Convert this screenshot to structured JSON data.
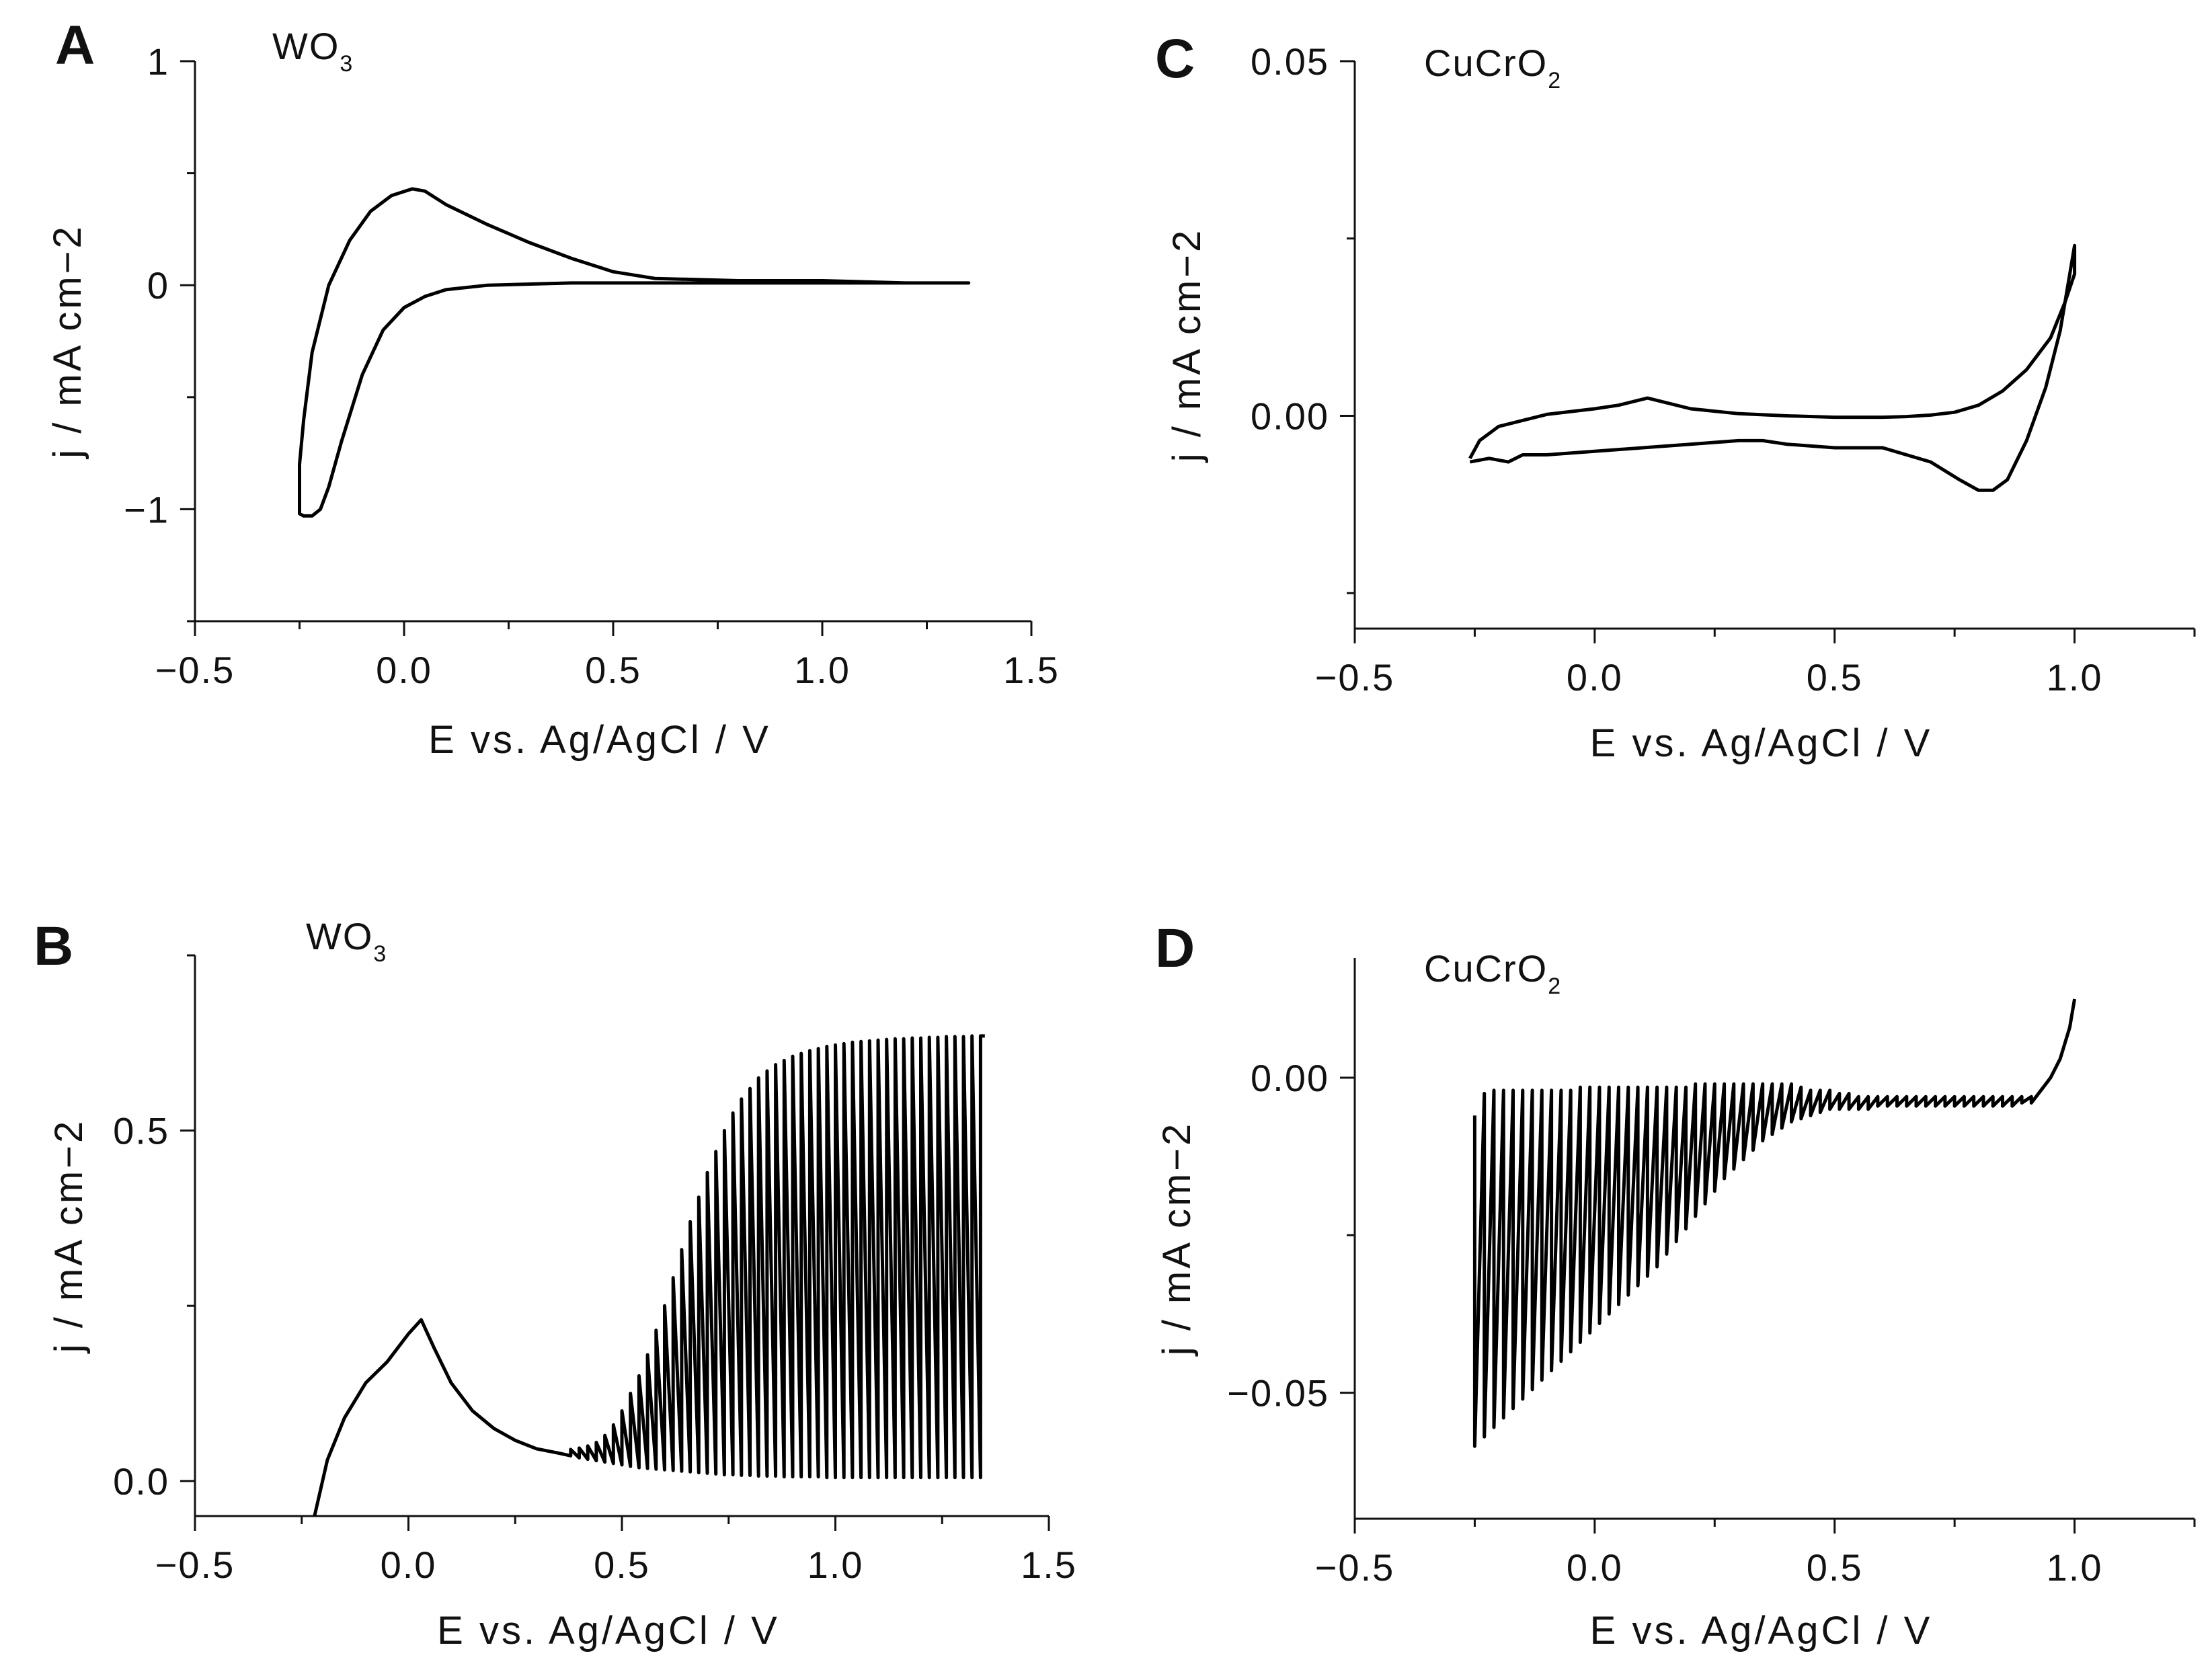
{
  "figure": {
    "panels": [
      {
        "id": "A",
        "letter": "A",
        "material": {
          "base": "WO",
          "sub": "3"
        }
      },
      {
        "id": "B",
        "letter": "B",
        "material": {
          "base": "WO",
          "sub": "3"
        }
      },
      {
        "id": "C",
        "letter": "C",
        "material": {
          "base": "CuCrO",
          "sub": "2"
        }
      },
      {
        "id": "D",
        "letter": "D",
        "material": {
          "base": "CuCrO",
          "sub": "2"
        }
      }
    ]
  },
  "chart_data": [
    {
      "panel": "A",
      "type": "line",
      "title": "WO3",
      "xlabel": "E vs. Ag/AgCl / V",
      "ylabel": "j / mA cm−2",
      "xlim": [
        -0.5,
        1.5
      ],
      "ylim": [
        -1.5,
        1.0
      ],
      "xticks": [
        -0.5,
        0.0,
        0.5,
        1.0,
        1.5
      ],
      "xtick_labels": [
        "−0.5",
        "0.0",
        "0.5",
        "1.0",
        "1.5"
      ],
      "yticks": [
        1,
        0,
        -1
      ],
      "ytick_labels": [
        "1",
        "0",
        "−1"
      ],
      "series": [
        {
          "name": "cyclic voltammogram",
          "x": [
            -0.25,
            -0.25,
            -0.24,
            -0.22,
            -0.2,
            -0.18,
            -0.15,
            -0.1,
            -0.05,
            0.0,
            0.05,
            0.1,
            0.2,
            0.4,
            0.6,
            0.8,
            1.0,
            1.2,
            1.35,
            1.35,
            1.2,
            1.0,
            0.8,
            0.6,
            0.5,
            0.4,
            0.3,
            0.2,
            0.1,
            0.05,
            0.02,
            -0.03,
            -0.08,
            -0.13,
            -0.18,
            -0.22,
            -0.24,
            -0.25
          ],
          "y": [
            -0.8,
            -1.02,
            -1.03,
            -1.03,
            -1.0,
            -0.9,
            -0.7,
            -0.4,
            -0.2,
            -0.1,
            -0.05,
            -0.02,
            0.0,
            0.01,
            0.01,
            0.01,
            0.01,
            0.01,
            0.01,
            0.01,
            0.01,
            0.02,
            0.02,
            0.03,
            0.06,
            0.12,
            0.19,
            0.27,
            0.36,
            0.42,
            0.43,
            0.4,
            0.33,
            0.2,
            0.0,
            -0.3,
            -0.6,
            -0.8
          ]
        }
      ]
    },
    {
      "panel": "B",
      "type": "line",
      "title": "WO3",
      "xlabel": "E vs. Ag/AgCl / V",
      "ylabel": "j / mA cm−2",
      "xlim": [
        -0.5,
        1.5
      ],
      "ylim": [
        -0.05,
        0.75
      ],
      "xticks": [
        -0.5,
        0.0,
        0.5,
        1.0,
        1.5
      ],
      "xtick_labels": [
        "−0.5",
        "0.0",
        "0.5",
        "1.0",
        "1.5"
      ],
      "yticks": [
        0.5,
        0.0
      ],
      "ytick_labels": [
        "0.5",
        "0.0"
      ],
      "series": [
        {
          "name": "chopped-light photocurrent",
          "x": [
            -0.22,
            -0.19,
            -0.15,
            -0.1,
            -0.05,
            0.0,
            0.03,
            0.06,
            0.1,
            0.15,
            0.2,
            0.25,
            0.3,
            0.35,
            0.38,
            0.38,
            0.4,
            0.4,
            0.42,
            0.42,
            0.44,
            0.44,
            0.46,
            0.46,
            0.48,
            0.48,
            0.5,
            0.5,
            0.52,
            0.52,
            0.54,
            0.54,
            0.56,
            0.56,
            0.58,
            0.58,
            0.6,
            0.6,
            0.62,
            0.62,
            0.64,
            0.64,
            0.66,
            0.66,
            0.68,
            0.68,
            0.7,
            0.7,
            0.72,
            0.72,
            0.74,
            0.74,
            0.76,
            0.76,
            0.78,
            0.78,
            0.8,
            0.8,
            0.82,
            0.82,
            0.84,
            0.84,
            0.86,
            0.86,
            0.88,
            0.88,
            0.9,
            0.9,
            0.92,
            0.92,
            0.94,
            0.94,
            0.96,
            0.96,
            0.98,
            0.98,
            1.0,
            1.0,
            1.02,
            1.02,
            1.04,
            1.04,
            1.06,
            1.06,
            1.08,
            1.08,
            1.1,
            1.1,
            1.12,
            1.12,
            1.14,
            1.14,
            1.16,
            1.16,
            1.18,
            1.18,
            1.2,
            1.2,
            1.22,
            1.22,
            1.24,
            1.24,
            1.26,
            1.26,
            1.28,
            1.28,
            1.3,
            1.3,
            1.32,
            1.32,
            1.34,
            1.34,
            1.35
          ],
          "y": [
            -0.05,
            0.03,
            0.09,
            0.14,
            0.17,
            0.21,
            0.23,
            0.19,
            0.14,
            0.1,
            0.075,
            0.058,
            0.046,
            0.04,
            0.036,
            0.045,
            0.033,
            0.047,
            0.031,
            0.05,
            0.029,
            0.055,
            0.027,
            0.065,
            0.025,
            0.08,
            0.023,
            0.1,
            0.021,
            0.125,
            0.019,
            0.15,
            0.018,
            0.18,
            0.017,
            0.215,
            0.016,
            0.25,
            0.015,
            0.29,
            0.014,
            0.33,
            0.013,
            0.37,
            0.012,
            0.405,
            0.011,
            0.44,
            0.01,
            0.47,
            0.009,
            0.5,
            0.009,
            0.525,
            0.008,
            0.545,
            0.008,
            0.56,
            0.007,
            0.575,
            0.007,
            0.585,
            0.007,
            0.594,
            0.006,
            0.6,
            0.006,
            0.606,
            0.006,
            0.61,
            0.006,
            0.614,
            0.006,
            0.617,
            0.005,
            0.62,
            0.005,
            0.622,
            0.005,
            0.624,
            0.005,
            0.626,
            0.005,
            0.627,
            0.005,
            0.628,
            0.005,
            0.629,
            0.005,
            0.63,
            0.005,
            0.631,
            0.005,
            0.631,
            0.005,
            0.632,
            0.005,
            0.632,
            0.005,
            0.633,
            0.005,
            0.633,
            0.005,
            0.634,
            0.005,
            0.634,
            0.005,
            0.634,
            0.005,
            0.635,
            0.005,
            0.635,
            0.635
          ]
        }
      ]
    },
    {
      "panel": "C",
      "type": "line",
      "title": "CuCrO2",
      "xlabel": "E vs. Ag/AgCl / V",
      "ylabel": "j / mA cm−2",
      "xlim": [
        -0.5,
        1.25
      ],
      "ylim": [
        -0.03,
        0.05
      ],
      "xticks": [
        -0.5,
        0.0,
        0.5,
        1.0
      ],
      "xtick_labels": [
        "−0.5",
        "0.0",
        "0.5",
        "1.0"
      ],
      "yticks": [
        0.05,
        0.0
      ],
      "ytick_labels": [
        "0.05",
        "0.00"
      ],
      "series": [
        {
          "name": "cyclic voltammogram",
          "x": [
            -0.26,
            -0.22,
            -0.18,
            -0.15,
            -0.1,
            0.0,
            0.1,
            0.2,
            0.3,
            0.35,
            0.4,
            0.5,
            0.6,
            0.7,
            0.76,
            0.8,
            0.83,
            0.86,
            0.9,
            0.94,
            0.97,
            1.0,
            1.0,
            0.98,
            0.95,
            0.9,
            0.85,
            0.8,
            0.75,
            0.7,
            0.65,
            0.6,
            0.5,
            0.4,
            0.3,
            0.2,
            0.11,
            0.05,
            0.0,
            -0.1,
            -0.2,
            -0.24,
            -0.26
          ],
          "y": [
            -0.0065,
            -0.006,
            -0.0065,
            -0.0055,
            -0.0055,
            -0.005,
            -0.0045,
            -0.004,
            -0.0035,
            -0.0035,
            -0.004,
            -0.0045,
            -0.0045,
            -0.0065,
            -0.009,
            -0.0105,
            -0.0105,
            -0.009,
            -0.0035,
            0.004,
            0.012,
            0.024,
            0.02,
            0.016,
            0.011,
            0.0065,
            0.0035,
            0.0015,
            0.0005,
            0.0001,
            -0.0001,
            -0.0002,
            -0.0002,
            0.0,
            0.0003,
            0.001,
            0.0025,
            0.0015,
            0.001,
            0.0002,
            -0.0015,
            -0.0035,
            -0.006
          ]
        }
      ]
    },
    {
      "panel": "D",
      "type": "line",
      "title": "CuCrO2",
      "xlabel": "E vs. Ag/AgCl / V",
      "ylabel": "j / mA cm−2",
      "xlim": [
        -0.5,
        1.25
      ],
      "ylim": [
        -0.07,
        0.019
      ],
      "xticks": [
        -0.5,
        0.0,
        0.5,
        1.0
      ],
      "xtick_labels": [
        "−0.5",
        "0.0",
        "0.5",
        "1.0"
      ],
      "yticks": [
        0.0,
        -0.05
      ],
      "ytick_labels": [
        "0.00",
        "−0.05"
      ],
      "series": [
        {
          "name": "chopped-light photocurrent",
          "x": [
            -0.25,
            -0.25,
            -0.23,
            -0.23,
            -0.21,
            -0.21,
            -0.19,
            -0.19,
            -0.17,
            -0.17,
            -0.15,
            -0.15,
            -0.13,
            -0.13,
            -0.11,
            -0.11,
            -0.09,
            -0.09,
            -0.07,
            -0.07,
            -0.05,
            -0.05,
            -0.03,
            -0.03,
            -0.01,
            -0.01,
            0.01,
            0.01,
            0.03,
            0.03,
            0.05,
            0.05,
            0.07,
            0.07,
            0.09,
            0.09,
            0.11,
            0.11,
            0.13,
            0.13,
            0.15,
            0.15,
            0.17,
            0.17,
            0.19,
            0.19,
            0.21,
            0.21,
            0.23,
            0.23,
            0.25,
            0.25,
            0.27,
            0.27,
            0.29,
            0.29,
            0.31,
            0.31,
            0.33,
            0.33,
            0.35,
            0.35,
            0.37,
            0.37,
            0.39,
            0.39,
            0.41,
            0.41,
            0.43,
            0.43,
            0.45,
            0.45,
            0.47,
            0.47,
            0.49,
            0.49,
            0.51,
            0.51,
            0.53,
            0.53,
            0.55,
            0.55,
            0.57,
            0.57,
            0.59,
            0.59,
            0.61,
            0.61,
            0.63,
            0.63,
            0.65,
            0.65,
            0.67,
            0.67,
            0.69,
            0.69,
            0.71,
            0.71,
            0.73,
            0.73,
            0.75,
            0.75,
            0.77,
            0.77,
            0.79,
            0.79,
            0.81,
            0.81,
            0.83,
            0.83,
            0.85,
            0.85,
            0.87,
            0.87,
            0.89,
            0.89,
            0.91,
            0.91,
            0.93,
            0.95,
            0.97,
            0.99,
            1.0
          ],
          "y": [
            -0.006,
            -0.0585,
            -0.0025,
            -0.057,
            -0.002,
            -0.0555,
            -0.002,
            -0.054,
            -0.002,
            -0.0525,
            -0.002,
            -0.051,
            -0.002,
            -0.0495,
            -0.002,
            -0.048,
            -0.002,
            -0.0465,
            -0.002,
            -0.045,
            -0.002,
            -0.0435,
            -0.0015,
            -0.042,
            -0.0015,
            -0.0405,
            -0.0015,
            -0.039,
            -0.0015,
            -0.0375,
            -0.0015,
            -0.036,
            -0.0015,
            -0.0345,
            -0.0015,
            -0.033,
            -0.0015,
            -0.0315,
            -0.0015,
            -0.03,
            -0.0015,
            -0.028,
            -0.0015,
            -0.026,
            -0.0015,
            -0.024,
            -0.001,
            -0.022,
            -0.001,
            -0.02,
            -0.001,
            -0.018,
            -0.001,
            -0.016,
            -0.001,
            -0.0145,
            -0.001,
            -0.013,
            -0.001,
            -0.0115,
            -0.001,
            -0.01,
            -0.001,
            -0.009,
            -0.001,
            -0.008,
            -0.001,
            -0.007,
            -0.0015,
            -0.0065,
            -0.002,
            -0.006,
            -0.002,
            -0.0055,
            -0.002,
            -0.005,
            -0.0025,
            -0.005,
            -0.0025,
            -0.005,
            -0.003,
            -0.005,
            -0.003,
            -0.005,
            -0.003,
            -0.0045,
            -0.003,
            -0.0045,
            -0.003,
            -0.0045,
            -0.003,
            -0.0045,
            -0.003,
            -0.0045,
            -0.003,
            -0.0045,
            -0.003,
            -0.0045,
            -0.003,
            -0.0045,
            -0.003,
            -0.0045,
            -0.003,
            -0.0045,
            -0.003,
            -0.0045,
            -0.003,
            -0.0045,
            -0.003,
            -0.0045,
            -0.003,
            -0.0045,
            -0.003,
            -0.0045,
            -0.003,
            -0.004,
            -0.003,
            -0.004,
            -0.002,
            0.0,
            0.003,
            0.008,
            0.0125
          ]
        }
      ]
    }
  ]
}
